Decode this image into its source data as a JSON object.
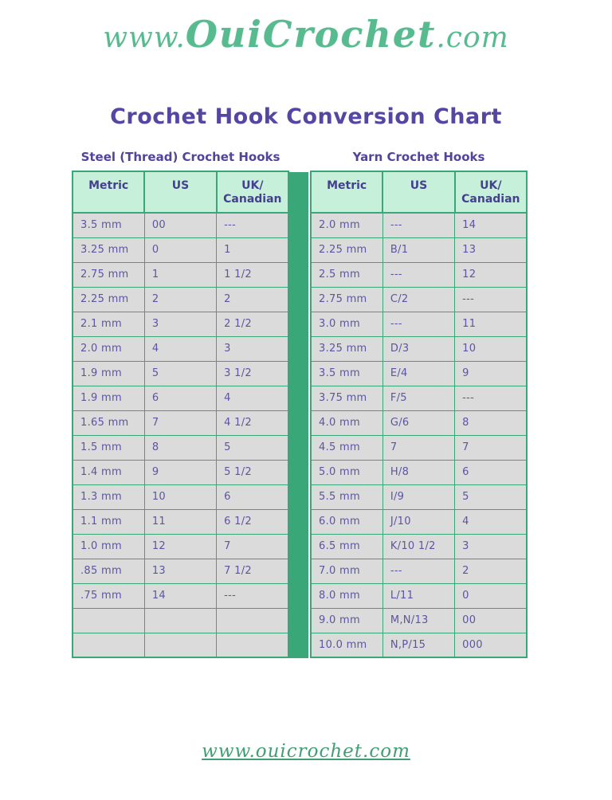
{
  "logo": {
    "prefix": "www.",
    "brand": "OuiCrochet",
    "suffix": ".com"
  },
  "title": "Crochet Hook Conversion Chart",
  "colors": {
    "accent_green": "#3aa778",
    "header_bg": "#c7f0da",
    "row_bg": "#dbdbdb",
    "title_purple": "#5646a3",
    "cell_text_purple": "#5c55a1",
    "logo_green": "#58bb90",
    "link_green": "#429e74"
  },
  "tables": [
    {
      "heading": "Steel (Thread) Crochet Hooks",
      "columns": [
        "Metric",
        "US",
        "UK/\nCanadian"
      ],
      "rows": [
        [
          "3.5 mm",
          "00",
          "---"
        ],
        [
          "3.25 mm",
          "0",
          "1"
        ],
        [
          "2.75 mm",
          "1",
          "1 1/2"
        ],
        [
          "2.25 mm",
          "2",
          "2"
        ],
        [
          "2.1 mm",
          "3",
          "2 1/2"
        ],
        [
          "2.0 mm",
          "4",
          "3"
        ],
        [
          "1.9 mm",
          "5",
          "3 1/2"
        ],
        [
          "1.9 mm",
          "6",
          "4"
        ],
        [
          "1.65 mm",
          "7",
          "4 1/2"
        ],
        [
          "1.5 mm",
          "8",
          "5"
        ],
        [
          "1.4 mm",
          "9",
          "5 1/2"
        ],
        [
          "1.3 mm",
          "10",
          "6"
        ],
        [
          "1.1 mm",
          "11",
          "6 1/2"
        ],
        [
          "1.0 mm",
          "12",
          "7"
        ],
        [
          ".85 mm",
          "13",
          "7 1/2"
        ],
        [
          ".75 mm",
          "14",
          "---"
        ],
        [
          "",
          "",
          ""
        ],
        [
          "",
          "",
          ""
        ]
      ]
    },
    {
      "heading": "Yarn Crochet Hooks",
      "columns": [
        "Metric",
        "US",
        "UK/\nCanadian"
      ],
      "rows": [
        [
          "2.0 mm",
          "---",
          "14"
        ],
        [
          "2.25 mm",
          "B/1",
          "13"
        ],
        [
          "2.5 mm",
          "---",
          "12"
        ],
        [
          "2.75 mm",
          "C/2",
          "---"
        ],
        [
          "3.0 mm",
          "---",
          "11"
        ],
        [
          "3.25 mm",
          "D/3",
          "10"
        ],
        [
          "3.5 mm",
          "E/4",
          "9"
        ],
        [
          "3.75 mm",
          "F/5",
          "---"
        ],
        [
          "4.0 mm",
          "G/6",
          "8"
        ],
        [
          "4.5 mm",
          "7",
          "7"
        ],
        [
          "5.0 mm",
          "H/8",
          "6"
        ],
        [
          "5.5 mm",
          "I/9",
          "5"
        ],
        [
          "6.0 mm",
          "J/10",
          "4"
        ],
        [
          "6.5 mm",
          "K/10 1/2",
          "3"
        ],
        [
          "7.0 mm",
          "---",
          "2"
        ],
        [
          "8.0 mm",
          "L/11",
          "0"
        ],
        [
          "9.0 mm",
          "M,N/13",
          "00"
        ],
        [
          "10.0 mm",
          "N,P/15",
          "000"
        ]
      ]
    }
  ],
  "footer": {
    "link_text": "www.ouicrochet.com"
  }
}
